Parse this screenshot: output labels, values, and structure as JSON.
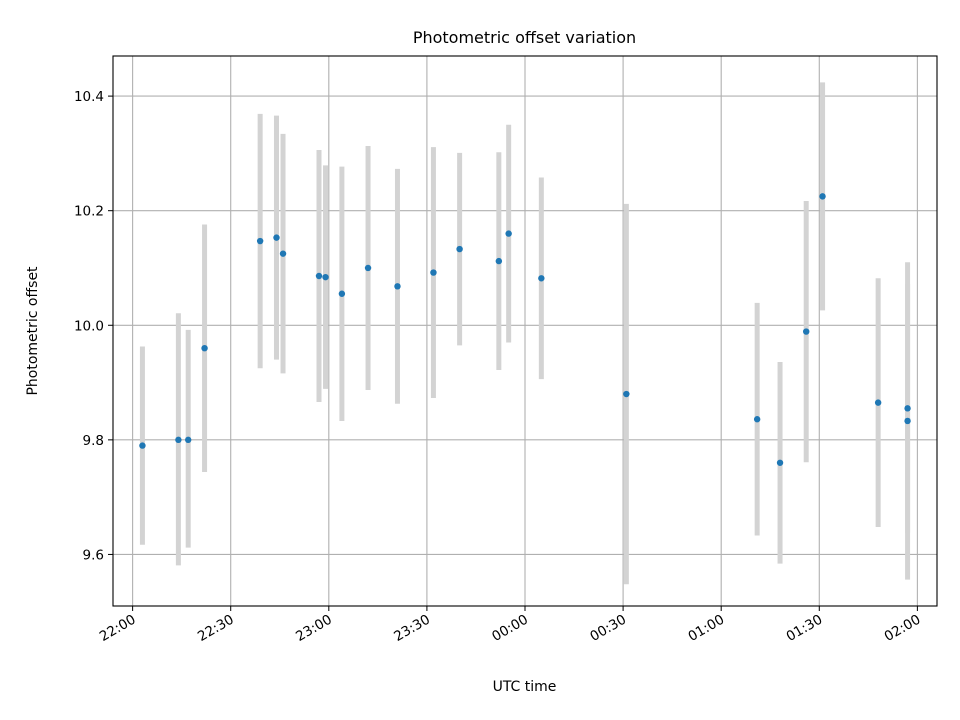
{
  "chart_data": {
    "type": "scatter",
    "title": "Photometric offset variation",
    "xlabel": "UTC time",
    "ylabel": "Photometric offset",
    "x_axis": {
      "type": "time",
      "range": [
        "21:54",
        "02:06"
      ],
      "ticks": [
        "22:00",
        "22:30",
        "23:00",
        "23:30",
        "00:00",
        "00:30",
        "01:00",
        "01:30",
        "02:00"
      ]
    },
    "y_axis": {
      "range": [
        9.51,
        10.47
      ],
      "ticks": [
        9.6,
        9.8,
        10.0,
        10.2,
        10.4
      ],
      "tick_labels": [
        "9.6",
        "9.8",
        "10.0",
        "10.2",
        "10.4"
      ]
    },
    "grid": true,
    "series": [
      {
        "marker_color": "#1f77b4",
        "error_bar_color": "#d3d3d3",
        "points": [
          {
            "time": "22:03",
            "y": 9.79,
            "ylo": 9.617,
            "yhi": 9.963
          },
          {
            "time": "22:14",
            "y": 9.8,
            "ylo": 9.581,
            "yhi": 10.021
          },
          {
            "time": "22:17",
            "y": 9.8,
            "ylo": 9.612,
            "yhi": 9.992
          },
          {
            "time": "22:22",
            "y": 9.96,
            "ylo": 9.744,
            "yhi": 10.176
          },
          {
            "time": "22:39",
            "y": 10.147,
            "ylo": 9.925,
            "yhi": 10.369
          },
          {
            "time": "22:44",
            "y": 10.153,
            "ylo": 9.94,
            "yhi": 10.366
          },
          {
            "time": "22:46",
            "y": 10.125,
            "ylo": 9.916,
            "yhi": 10.334
          },
          {
            "time": "22:57",
            "y": 10.086,
            "ylo": 9.866,
            "yhi": 10.306
          },
          {
            "time": "22:59",
            "y": 10.084,
            "ylo": 9.889,
            "yhi": 10.279
          },
          {
            "time": "23:04",
            "y": 10.055,
            "ylo": 9.833,
            "yhi": 10.277
          },
          {
            "time": "23:12",
            "y": 10.1,
            "ylo": 9.887,
            "yhi": 10.313
          },
          {
            "time": "23:21",
            "y": 10.068,
            "ylo": 9.863,
            "yhi": 10.273
          },
          {
            "time": "23:32",
            "y": 10.092,
            "ylo": 9.873,
            "yhi": 10.311
          },
          {
            "time": "23:40",
            "y": 10.133,
            "ylo": 9.965,
            "yhi": 10.301
          },
          {
            "time": "23:52",
            "y": 10.112,
            "ylo": 9.922,
            "yhi": 10.302
          },
          {
            "time": "23:55",
            "y": 10.16,
            "ylo": 9.97,
            "yhi": 10.35
          },
          {
            "time": "00:05",
            "y": 10.082,
            "ylo": 9.906,
            "yhi": 10.258
          },
          {
            "time": "00:31",
            "y": 9.88,
            "ylo": 9.548,
            "yhi": 10.212
          },
          {
            "time": "01:11",
            "y": 9.836,
            "ylo": 9.633,
            "yhi": 10.039
          },
          {
            "time": "01:18",
            "y": 9.76,
            "ylo": 9.584,
            "yhi": 9.936
          },
          {
            "time": "01:26",
            "y": 9.989,
            "ylo": 9.761,
            "yhi": 10.217
          },
          {
            "time": "01:31",
            "y": 10.225,
            "ylo": 10.026,
            "yhi": 10.424
          },
          {
            "time": "01:48",
            "y": 9.865,
            "ylo": 9.648,
            "yhi": 10.082
          },
          {
            "time": "01:57",
            "y": 9.855,
            "ylo": 9.638,
            "yhi": 10.072
          },
          {
            "time": "01:57",
            "y": 9.833,
            "ylo": 9.556,
            "yhi": 10.11
          }
        ]
      }
    ]
  }
}
